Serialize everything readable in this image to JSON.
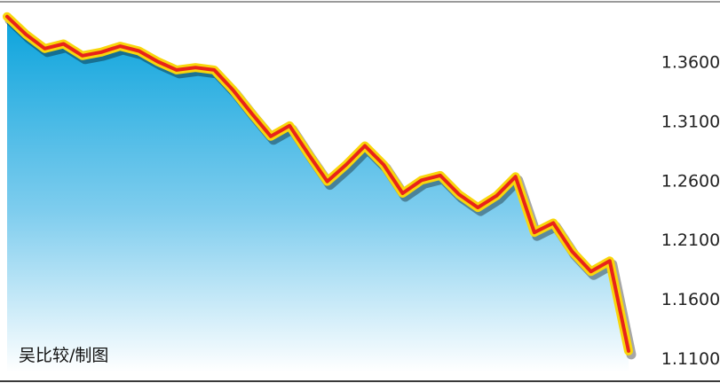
{
  "credit": "吴比较/制图",
  "chart_data": {
    "type": "area",
    "title": "",
    "xlabel": "",
    "ylabel": "",
    "y_axis_position": "right",
    "grid": false,
    "ylim": [
      1.098,
      1.406
    ],
    "yticks": [
      "1.3600",
      "1.3100",
      "1.2600",
      "1.2100",
      "1.1600",
      "1.1100"
    ],
    "ytick_values": [
      1.36,
      1.31,
      1.26,
      1.21,
      1.16,
      1.11
    ],
    "x": [
      0,
      1,
      2,
      3,
      4,
      5,
      6,
      7,
      8,
      9,
      10,
      11,
      12,
      13,
      14,
      15,
      16,
      17,
      18,
      19,
      20,
      21,
      22,
      23,
      24,
      25,
      26,
      27,
      28,
      29,
      30,
      31,
      32,
      33
    ],
    "values": [
      1.398,
      1.383,
      1.371,
      1.375,
      1.365,
      1.368,
      1.373,
      1.369,
      1.36,
      1.353,
      1.355,
      1.353,
      1.336,
      1.316,
      1.297,
      1.306,
      1.282,
      1.259,
      1.273,
      1.289,
      1.273,
      1.249,
      1.26,
      1.264,
      1.248,
      1.237,
      1.247,
      1.263,
      1.216,
      1.224,
      1.2,
      1.183,
      1.192,
      1.116
    ],
    "colors": {
      "line": "#e8231a",
      "line_halo": "#f8d60c",
      "area_top": "#0aa3dc",
      "area_bottom": "#ffffff"
    }
  }
}
